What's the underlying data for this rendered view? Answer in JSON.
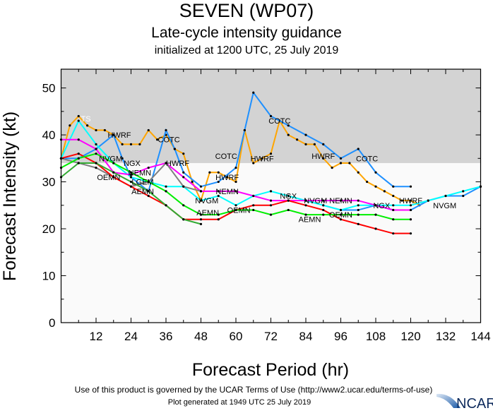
{
  "header": {
    "title": "SEVEN (WP07)",
    "subtitle": "Late-cycle intensity guidance",
    "initialized": "initialized at 1200 UTC, 25 July 2019"
  },
  "footer": {
    "terms": "Use of this product is governed by the UCAR Terms of Use (http://www2.ucar.edu/terms-of-use)",
    "generated": "Plot generated at 1949 UTC   25 July 2019",
    "logo_text": "NCAR"
  },
  "chart_data": {
    "type": "line",
    "xlabel": "Forecast Period (hr)",
    "ylabel": "Forecast Intensity (kt)",
    "xlim": [
      0,
      144
    ],
    "ylim": [
      0,
      54
    ],
    "xticks": [
      12,
      24,
      36,
      48,
      60,
      72,
      84,
      96,
      108,
      120,
      132,
      144
    ],
    "yticks": [
      0,
      10,
      20,
      30,
      40,
      50
    ],
    "shaded_above_kt": 34,
    "colors": {
      "shade": "#d3d3d3",
      "plot_bg": "#fafafa"
    },
    "series": [
      {
        "color": "#ffa500",
        "points": [
          [
            0,
            35
          ],
          [
            3,
            42
          ],
          [
            6,
            44
          ],
          [
            9,
            42
          ],
          [
            12,
            41
          ],
          [
            15,
            41
          ],
          [
            18,
            40
          ],
          [
            21,
            38
          ],
          [
            24,
            38
          ],
          [
            27,
            38
          ],
          [
            30,
            41
          ],
          [
            33,
            39
          ],
          [
            36,
            40
          ],
          [
            39,
            37
          ],
          [
            42,
            36
          ],
          [
            45,
            30
          ],
          [
            48,
            26
          ],
          [
            51,
            32
          ],
          [
            54,
            32
          ],
          [
            57,
            31
          ],
          [
            60,
            30
          ],
          [
            63,
            41
          ],
          [
            66,
            34
          ],
          [
            69,
            35
          ],
          [
            72,
            36
          ],
          [
            75,
            43
          ],
          [
            78,
            40
          ],
          [
            81,
            39
          ],
          [
            84,
            38
          ],
          [
            87,
            38
          ],
          [
            90,
            35
          ],
          [
            93,
            33
          ],
          [
            96,
            34
          ],
          [
            99,
            34
          ],
          [
            102,
            32
          ],
          [
            105,
            30
          ],
          [
            108,
            29
          ],
          [
            111,
            28
          ],
          [
            114,
            27
          ],
          [
            117,
            26
          ],
          [
            120,
            26
          ],
          [
            123,
            25
          ],
          [
            126,
            26
          ]
        ]
      },
      {
        "color": "#1e90ff",
        "points": [
          [
            0,
            35
          ],
          [
            6,
            35
          ],
          [
            12,
            37
          ],
          [
            18,
            40
          ],
          [
            21,
            35
          ],
          [
            24,
            31
          ],
          [
            30,
            28
          ],
          [
            36,
            41
          ],
          [
            39,
            37
          ],
          [
            42,
            32
          ],
          [
            48,
            29
          ],
          [
            54,
            30
          ],
          [
            60,
            33
          ],
          [
            63,
            41
          ],
          [
            66,
            49
          ],
          [
            72,
            44
          ],
          [
            78,
            42
          ],
          [
            84,
            40
          ],
          [
            90,
            38
          ],
          [
            96,
            35
          ],
          [
            102,
            37
          ],
          [
            108,
            32
          ],
          [
            114,
            29
          ],
          [
            120,
            29
          ]
        ]
      },
      {
        "color": "#1e90ff",
        "points": [
          [
            90,
            25
          ],
          [
            96,
            24
          ],
          [
            102,
            24
          ],
          [
            108,
            25
          ],
          [
            114,
            24
          ],
          [
            120,
            24
          ],
          [
            126,
            26
          ],
          [
            132,
            27
          ],
          [
            138,
            27
          ],
          [
            144,
            29
          ]
        ]
      },
      {
        "color": "#00ffff",
        "points": [
          [
            0,
            35
          ],
          [
            6,
            43
          ],
          [
            12,
            38
          ],
          [
            18,
            34
          ],
          [
            24,
            31
          ],
          [
            30,
            30
          ],
          [
            36,
            29
          ],
          [
            42,
            29
          ],
          [
            48,
            26
          ],
          [
            54,
            27
          ],
          [
            60,
            25
          ],
          [
            66,
            27
          ],
          [
            72,
            28
          ],
          [
            78,
            27
          ],
          [
            84,
            26
          ],
          [
            90,
            25
          ],
          [
            96,
            24
          ],
          [
            102,
            25
          ],
          [
            108,
            25
          ],
          [
            114,
            25
          ],
          [
            120,
            25
          ],
          [
            126,
            26
          ],
          [
            132,
            27
          ],
          [
            138,
            28
          ],
          [
            144,
            29
          ]
        ]
      },
      {
        "color": "#ff00ff",
        "points": [
          [
            0,
            39
          ],
          [
            6,
            39
          ],
          [
            12,
            37
          ],
          [
            18,
            32
          ],
          [
            24,
            31.5
          ],
          [
            30,
            33
          ],
          [
            36,
            34
          ],
          [
            42,
            31
          ],
          [
            48,
            28
          ],
          [
            54,
            28
          ],
          [
            60,
            28
          ],
          [
            66,
            27
          ],
          [
            72,
            26
          ],
          [
            78,
            26
          ],
          [
            84,
            26
          ],
          [
            90,
            26
          ],
          [
            96,
            26
          ],
          [
            102,
            26
          ],
          [
            108,
            25
          ],
          [
            114,
            24
          ],
          [
            120,
            24
          ]
        ]
      },
      {
        "color": "#808080",
        "points": [
          [
            0,
            35
          ],
          [
            6,
            34
          ],
          [
            12,
            33
          ],
          [
            18,
            31
          ],
          [
            24,
            29
          ],
          [
            30,
            30
          ],
          [
            36,
            34
          ],
          [
            42,
            29
          ],
          [
            48,
            28
          ]
        ]
      },
      {
        "color": "#ff0000",
        "points": [
          [
            0,
            35
          ],
          [
            6,
            36
          ],
          [
            12,
            34
          ],
          [
            18,
            31
          ],
          [
            24,
            29
          ],
          [
            30,
            27
          ],
          [
            36,
            25
          ],
          [
            42,
            22
          ],
          [
            48,
            22
          ],
          [
            54,
            22
          ],
          [
            60,
            24
          ],
          [
            66,
            25
          ],
          [
            72,
            25
          ],
          [
            78,
            26
          ],
          [
            84,
            25
          ],
          [
            90,
            24
          ],
          [
            96,
            22
          ],
          [
            102,
            21
          ],
          [
            108,
            20
          ],
          [
            114,
            19
          ],
          [
            120,
            19
          ]
        ]
      },
      {
        "color": "#00ee00",
        "points": [
          [
            0,
            33
          ],
          [
            6,
            35
          ],
          [
            12,
            36
          ],
          [
            18,
            34
          ],
          [
            24,
            32
          ],
          [
            30,
            30
          ],
          [
            36,
            28
          ],
          [
            42,
            25
          ],
          [
            48,
            23
          ],
          [
            54,
            23
          ],
          [
            60,
            24
          ],
          [
            66,
            24
          ],
          [
            72,
            23
          ],
          [
            78,
            24
          ],
          [
            84,
            23
          ],
          [
            90,
            23
          ],
          [
            96,
            23
          ],
          [
            102,
            23
          ],
          [
            108,
            23
          ],
          [
            114,
            22
          ],
          [
            120,
            22
          ]
        ]
      },
      {
        "color": "#33aa33",
        "points": [
          [
            0,
            31
          ],
          [
            6,
            34
          ],
          [
            12,
            34
          ],
          [
            18,
            32
          ],
          [
            24,
            30
          ],
          [
            30,
            28
          ],
          [
            36,
            25
          ],
          [
            42,
            22
          ],
          [
            48,
            21
          ]
        ]
      }
    ],
    "annotations": [
      {
        "text": "TS",
        "hr": 8.5,
        "kt": 43.5,
        "color": "#ffffff"
      },
      {
        "text": "HWRF",
        "hr": 20,
        "kt": 40
      },
      {
        "text": "HWRF",
        "hr": 40,
        "kt": 34
      },
      {
        "text": "HWRF",
        "hr": 57,
        "kt": 31
      },
      {
        "text": "HWRF",
        "hr": 69,
        "kt": 35
      },
      {
        "text": "HWRF",
        "hr": 90,
        "kt": 35.5
      },
      {
        "text": "HWRF",
        "hr": 120,
        "kt": 26
      },
      {
        "text": "COTC",
        "hr": 37,
        "kt": 39
      },
      {
        "text": "COTC",
        "hr": 62,
        "kt": 35.5
      },
      {
        "text": "COTC",
        "hr": 75,
        "kt": 43
      },
      {
        "text": "COTC",
        "hr": 105,
        "kt": 35
      },
      {
        "text": "NVGM",
        "hr": 17,
        "kt": 35
      },
      {
        "text": "NGX",
        "hr": 19,
        "kt": 34
      },
      {
        "text": "NEMN",
        "hr": 27,
        "kt": 32
      },
      {
        "text": "OEMN",
        "hr": 27,
        "kt": 31
      },
      {
        "text": "LGEM",
        "hr": 28,
        "kt": 30
      },
      {
        "text": "AEMN",
        "hr": 28,
        "kt": 28
      },
      {
        "text": "NEMN",
        "hr": 57,
        "kt": 28
      },
      {
        "text": "NVGM",
        "hr": 50,
        "kt": 26
      },
      {
        "text": "OEMN",
        "hr": 61,
        "kt": 24
      },
      {
        "text": "AEMN",
        "hr": 61,
        "kt": 23.5
      },
      {
        "text": "NGX",
        "hr": 78,
        "kt": 27
      },
      {
        "text": "NVGM",
        "hr": 82,
        "kt": 26
      },
      {
        "text": "NEMN",
        "hr": 96,
        "kt": 26
      },
      {
        "text": "OEMN",
        "hr": 96,
        "kt": 23
      },
      {
        "text": "AEMN",
        "hr": 96,
        "kt": 22
      },
      {
        "text": "NGX",
        "hr": 110,
        "kt": 25
      },
      {
        "text": "NVGM",
        "hr": 121,
        "kt": 25
      }
    ]
  }
}
